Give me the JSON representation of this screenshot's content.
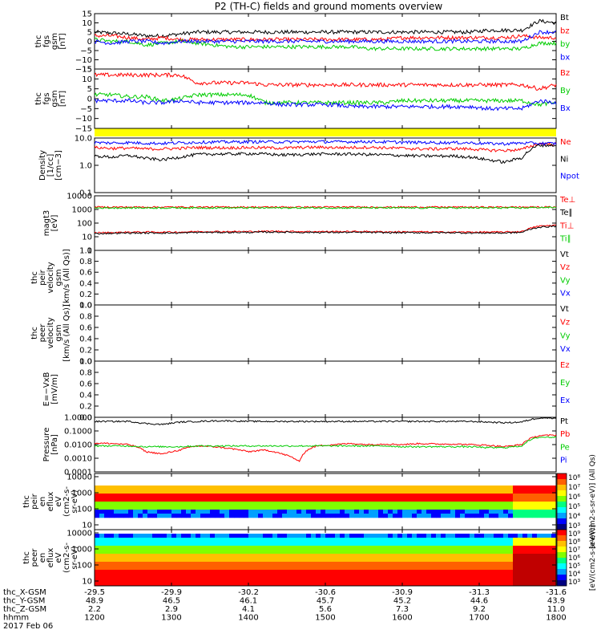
{
  "chart_data": {
    "type": "line",
    "title": "P2 (TH-C) fields and ground moments overview",
    "x": {
      "ticks": [
        "1200",
        "1300",
        "1400",
        "1500",
        "1600",
        "1700",
        "1800"
      ],
      "range_hhmm": [
        "1200",
        "1800"
      ]
    },
    "ephemeris": {
      "labels": [
        "thc_X-GSM",
        "thc_Y-GSM",
        "thc_Z-GSM",
        "hhmm"
      ],
      "date": "2017 Feb 06",
      "rows": [
        [
          "-29.5",
          "-29.9",
          "-30.2",
          "-30.6",
          "-30.9",
          "-31.3",
          "-31.6"
        ],
        [
          "48.9",
          "46.5",
          "46.1",
          "45.7",
          "45.2",
          "44.6",
          "43.9"
        ],
        [
          "2.2",
          "2.9",
          "4.1",
          "5.6",
          "7.3",
          "9.2",
          "11.0"
        ],
        [
          "1200",
          "1300",
          "1400",
          "1500",
          "1600",
          "1700",
          "1800"
        ]
      ]
    },
    "panels": [
      {
        "ylabel": [
          "thc",
          "fgs",
          "gsm",
          "[nT]"
        ],
        "yticks": [
          "15",
          "10",
          "5",
          "0",
          "−5",
          "−10",
          "−15"
        ],
        "ylim": [
          -15,
          15
        ],
        "legend": [
          {
            "name": "Bt",
            "color": "#000000"
          },
          {
            "name": "bz",
            "color": "#ff0000"
          },
          {
            "name": "by",
            "color": "#00cc00"
          },
          {
            "name": "bx",
            "color": "#0000ff"
          }
        ],
        "series": [
          {
            "name": "Bt",
            "values": [
              5,
              4.5,
              4,
              3,
              3,
              4,
              5,
              5,
              5,
              5,
              5,
              5,
              5,
              5,
              5,
              5,
              5,
              5,
              5,
              5,
              5,
              5,
              5,
              6,
              6,
              6,
              11,
              10
            ]
          },
          {
            "name": "bz",
            "values": [
              3,
              3,
              2,
              1,
              2,
              1,
              1,
              1,
              1,
              1,
              1,
              1,
              1,
              1,
              1,
              1,
              1,
              1,
              2,
              2,
              2,
              2,
              2,
              2,
              2,
              3,
              2,
              2
            ]
          },
          {
            "name": "by",
            "values": [
              1,
              0,
              0,
              -2,
              -1,
              0,
              -1,
              -2,
              -3,
              -3,
              -3,
              -3,
              -3,
              -3,
              -3,
              -3,
              -4,
              -4,
              -4,
              -4,
              -4,
              -4,
              -4,
              -4,
              -4,
              -4,
              -1,
              -1
            ]
          },
          {
            "name": "bx",
            "values": [
              0,
              -1,
              0,
              0,
              -1,
              0,
              0,
              0,
              0,
              0,
              0,
              0,
              0,
              0,
              0,
              0,
              0,
              0,
              0,
              0,
              0,
              0,
              0,
              0,
              0,
              0,
              5,
              5
            ]
          }
        ]
      },
      {
        "ylabel": [
          "thc",
          "fgs",
          "gsm",
          "[nT]"
        ],
        "yticks": [
          "15",
          "10",
          "5",
          "0",
          "−5",
          "−10",
          "−15"
        ],
        "ylim": [
          -15,
          15
        ],
        "legend": [
          {
            "name": "Bz",
            "color": "#ff0000"
          },
          {
            "name": "By",
            "color": "#00cc00"
          },
          {
            "name": "Bx",
            "color": "#0000ff"
          }
        ],
        "series": [
          {
            "name": "Bz",
            "values": [
              12,
              12,
              12,
              12,
              12,
              12,
              8,
              8,
              8,
              8,
              7,
              7,
              7,
              7,
              7,
              7,
              7,
              7,
              7,
              7,
              7,
              7,
              7,
              7,
              7,
              7,
              5,
              7
            ]
          },
          {
            "name": "By",
            "values": [
              2,
              2,
              1,
              1,
              -1,
              0,
              2,
              2,
              2,
              2,
              -2,
              -2,
              -2,
              -2,
              -2,
              -2,
              -2,
              -2,
              -1,
              -1,
              -1,
              -1,
              -1,
              -1,
              -1,
              -1,
              -3,
              -2
            ]
          },
          {
            "name": "Bx",
            "values": [
              -1,
              -1,
              -1,
              -2,
              -2,
              -1,
              -2,
              -2,
              -2,
              -2,
              -2,
              -3,
              -3,
              -3,
              -3,
              -4,
              -4,
              -4,
              -4,
              -4,
              -4,
              -4,
              -4,
              -5,
              -5,
              -5,
              -1,
              -2
            ]
          }
        ]
      },
      {
        "ylabel": [
          "Density",
          "[1/cc]",
          "[cm−3]"
        ],
        "yticks": [
          "10.0",
          "1.0",
          "0.1"
        ],
        "log": true,
        "ylim": [
          0.1,
          10
        ],
        "legend": [
          {
            "name": "Ne",
            "color": "#ff0000"
          },
          {
            "name": "Ni",
            "color": "#000000"
          },
          {
            "name": "Npot",
            "color": "#0000ff"
          }
        ],
        "series": [
          {
            "name": "Ne",
            "values": [
              4.5,
              4.2,
              4.3,
              4.0,
              4.0,
              4.2,
              4.5,
              4.4,
              4.4,
              4.5,
              4.4,
              4.3,
              4.5,
              4.6,
              4.5,
              4.5,
              4.6,
              4.4,
              4.2,
              4.0,
              4.0,
              4.1,
              4.0,
              3.6,
              3.5,
              3.8,
              6.2,
              6.0
            ]
          },
          {
            "name": "Ni",
            "values": [
              2.2,
              2.0,
              2.3,
              1.8,
              1.6,
              2.0,
              2.5,
              2.6,
              2.6,
              2.7,
              2.6,
              2.4,
              2.5,
              2.6,
              2.6,
              2.6,
              2.5,
              2.4,
              2.3,
              2.2,
              2.2,
              2.2,
              2.0,
              1.6,
              1.3,
              1.9,
              5.5,
              5.4
            ]
          },
          {
            "name": "Npot",
            "values": [
              6.8,
              6.6,
              6.8,
              6.5,
              6.4,
              6.7,
              7.0,
              7.2,
              7.2,
              7.3,
              7.3,
              7.2,
              7.3,
              7.4,
              7.3,
              7.3,
              7.4,
              7.2,
              7.0,
              6.9,
              6.8,
              6.8,
              6.7,
              6.3,
              6.2,
              6.6,
              6.4,
              6.3
            ]
          }
        ]
      },
      {
        "ylabel": [
          "magt3",
          "[eV]"
        ],
        "yticks": [
          "10000",
          "1000",
          "100",
          "10",
          "1"
        ],
        "log": true,
        "ylim": [
          1,
          10000
        ],
        "legend": [
          {
            "name": "Te⊥",
            "color": "#ff0000"
          },
          {
            "name": "Te∥",
            "color": "#000000"
          },
          {
            "name": "Ti⊥",
            "color": "#ff0000"
          },
          {
            "name": "Ti∥",
            "color": "#00cc00"
          }
        ],
        "series": [
          {
            "name": "Te⊥",
            "values": [
              20,
              20,
              22,
              22,
              22,
              22,
              24,
              24,
              24,
              24,
              25,
              25,
              24,
              24,
              24,
              24,
              24,
              23,
              23,
              23,
              22,
              22,
              22,
              22,
              22,
              24,
              60,
              70
            ]
          },
          {
            "name": "Te∥",
            "values": [
              17,
              18,
              19,
              19,
              19,
              19,
              21,
              21,
              21,
              21,
              22,
              22,
              21,
              21,
              21,
              21,
              21,
              20,
              20,
              20,
              20,
              20,
              19,
              19,
              19,
              21,
              50,
              60
            ]
          },
          {
            "name": "Ti⊥",
            "values": [
              1500,
              1500,
              1500,
              1500,
              1500,
              1500,
              1500,
              1500,
              1500,
              1500,
              1500,
              1500,
              1500,
              1500,
              1500,
              1500,
              1500,
              1500,
              1500,
              1500,
              1500,
              1500,
              1500,
              1500,
              1500,
              1500,
              1500,
              1500
            ]
          },
          {
            "name": "Ti∥",
            "values": [
              1300,
              1300,
              1300,
              1300,
              1300,
              1300,
              1300,
              1300,
              1300,
              1300,
              1300,
              1300,
              1300,
              1300,
              1300,
              1300,
              1300,
              1300,
              1300,
              1300,
              1300,
              1300,
              1300,
              1300,
              1300,
              1300,
              1400,
              1400
            ]
          }
        ]
      },
      {
        "ylabel": [
          "thc",
          "peir",
          "velocity",
          "gsm",
          "[km/s (All Qs)]"
        ],
        "yticks": [
          "1.0",
          "0.8",
          "0.6",
          "0.4",
          "0.2",
          "0.0"
        ],
        "ylim": [
          0,
          1
        ],
        "legend": [
          {
            "name": "Vt",
            "color": "#000000"
          },
          {
            "name": "Vz",
            "color": "#ff0000"
          },
          {
            "name": "Vy",
            "color": "#00cc00"
          },
          {
            "name": "Vx",
            "color": "#0000ff"
          }
        ],
        "series": []
      },
      {
        "ylabel": [
          "thc",
          "peer",
          "velocity",
          "gsm",
          "[km/s (All Qs)]"
        ],
        "yticks": [
          "1.0",
          "0.8",
          "0.6",
          "0.4",
          "0.2",
          "0.0"
        ],
        "ylim": [
          0,
          1
        ],
        "legend": [
          {
            "name": "Vt",
            "color": "#000000"
          },
          {
            "name": "Vz",
            "color": "#ff0000"
          },
          {
            "name": "Vy",
            "color": "#00cc00"
          },
          {
            "name": "Vx",
            "color": "#0000ff"
          }
        ],
        "series": []
      },
      {
        "ylabel": [
          "E=−VxB",
          "[mV/m]"
        ],
        "yticks": [
          "1.0",
          "0.8",
          "0.6",
          "0.4",
          "0.2",
          "0.0"
        ],
        "ylim": [
          0,
          1
        ],
        "legend": [
          {
            "name": "Ez",
            "color": "#ff0000"
          },
          {
            "name": "Ey",
            "color": "#00cc00"
          },
          {
            "name": "Ex",
            "color": "#0000ff"
          }
        ],
        "series": []
      },
      {
        "ylabel": [
          "Pressure",
          "[nPa]"
        ],
        "yticks": [
          "1.0000",
          "0.1000",
          "0.0100",
          "0.0010",
          "0.0001"
        ],
        "log": true,
        "ylim": [
          0.0001,
          1
        ],
        "legend": [
          {
            "name": "Pt",
            "color": "#000000"
          },
          {
            "name": "Pb",
            "color": "#ff0000"
          },
          {
            "name": "Pe",
            "color": "#00cc00"
          },
          {
            "name": "Pi",
            "color": "#0000ff"
          }
        ],
        "series": [
          {
            "name": "Pt",
            "values": [
              0.5,
              0.5,
              0.5,
              0.35,
              0.3,
              0.45,
              0.5,
              0.55,
              0.55,
              0.5,
              0.5,
              0.5,
              0.5,
              0.5,
              0.5,
              0.5,
              0.5,
              0.5,
              0.5,
              0.5,
              0.5,
              0.5,
              0.5,
              0.45,
              0.4,
              0.45,
              0.9,
              0.9
            ]
          },
          {
            "name": "Pb",
            "values": [
              0.013,
              0.012,
              0.01,
              0.003,
              0.002,
              0.004,
              0.008,
              0.007,
              0.005,
              0.003,
              0.004,
              0.002,
              0.0005,
              0.008,
              0.01,
              0.012,
              0.01,
              0.011,
              0.01,
              0.012,
              0.011,
              0.011,
              0.01,
              0.009,
              0.007,
              0.01,
              0.045,
              0.05
            ]
          },
          {
            "name": "Pe",
            "values": [
              0.008,
              0.008,
              0.008,
              0.007,
              0.007,
              0.007,
              0.008,
              0.008,
              0.008,
              0.008,
              0.008,
              0.008,
              0.008,
              0.008,
              0.008,
              0.008,
              0.008,
              0.008,
              0.007,
              0.007,
              0.007,
              0.007,
              0.007,
              0.006,
              0.006,
              0.008,
              0.035,
              0.035
            ]
          }
        ]
      },
      {
        "type": "heatmap",
        "ylabel": [
          "thc",
          "peir",
          "en",
          "eflux",
          "eV",
          "(cm2-s-",
          "sr-eV)"
        ],
        "yticks": [
          "10000",
          "1000",
          "100",
          "10"
        ],
        "log": true,
        "colorbar": {
          "ticks": [
            "10⁸",
            "10⁷",
            "10⁶",
            "10⁵",
            "10⁴",
            "10³"
          ],
          "label": "[eV/(cm2-s-sr-eV)] (All Qs)"
        }
      },
      {
        "type": "heatmap",
        "ylabel": [
          "thc",
          "peer",
          "en",
          "eflux",
          "eV",
          "(cm2-s-",
          "sr-eV)"
        ],
        "yticks": [
          "10000",
          "1000",
          "100",
          "10"
        ],
        "log": true,
        "colorbar": {
          "ticks": [
            "10⁹",
            "10⁸",
            "10⁷",
            "10⁶",
            "10⁵",
            "10⁴",
            "10³"
          ],
          "label": "[eV/(cm2-s-sr-eV)]"
        }
      }
    ]
  }
}
